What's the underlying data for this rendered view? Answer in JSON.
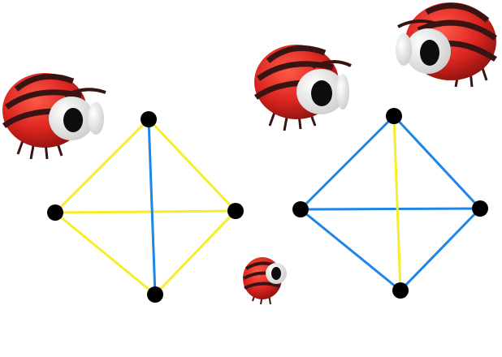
{
  "colors": {
    "background": "#ffffff",
    "yellow_edge": "#f5ee2a",
    "blue_edge": "#1f86e6",
    "node": "#000000",
    "bug_body": "#d9241e",
    "bug_stripe": "#3a1412",
    "bug_eye_white": "#f4f4f4",
    "bug_pupil": "#0d0d0d"
  },
  "graphs": [
    {
      "name": "left-graph",
      "nodes": [
        "top",
        "left",
        "right",
        "bottom"
      ],
      "edges": [
        {
          "from": "top",
          "to": "left",
          "color": "yellow"
        },
        {
          "from": "top",
          "to": "right",
          "color": "yellow"
        },
        {
          "from": "left",
          "to": "bottom",
          "color": "yellow"
        },
        {
          "from": "right",
          "to": "bottom",
          "color": "yellow"
        },
        {
          "from": "left",
          "to": "right",
          "color": "yellow"
        },
        {
          "from": "top",
          "to": "bottom",
          "color": "blue"
        }
      ]
    },
    {
      "name": "right-graph",
      "nodes": [
        "top",
        "left",
        "right",
        "bottom"
      ],
      "edges": [
        {
          "from": "top",
          "to": "left",
          "color": "blue"
        },
        {
          "from": "top",
          "to": "right",
          "color": "blue"
        },
        {
          "from": "left",
          "to": "bottom",
          "color": "blue"
        },
        {
          "from": "right",
          "to": "bottom",
          "color": "blue"
        },
        {
          "from": "left",
          "to": "right",
          "color": "blue"
        },
        {
          "from": "top",
          "to": "bottom",
          "color": "yellow"
        }
      ]
    }
  ],
  "characters": [
    "ladybug",
    "ladybug",
    "ladybug",
    "ladybug"
  ]
}
